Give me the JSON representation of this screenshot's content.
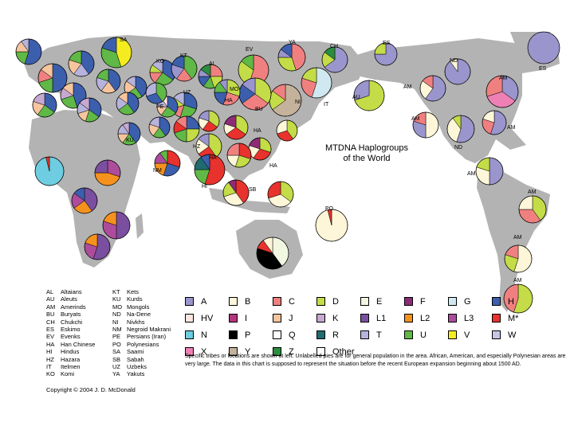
{
  "title_lines": [
    "MTDNA Haplogroups",
    "of the World"
  ],
  "copyright": "Copyright © 2004 J. D. McDonald",
  "note": "Specific tribes or locations are shown at left. Unlabelled pies are for general population in the area. African, American, and especially Polynesian areas are very large. The data in this chart is supposed to represent the situation before the recent European expansion beginning about 1500 AD.",
  "abbreviations": [
    {
      "code": "AL",
      "name": "Altaians"
    },
    {
      "code": "AU",
      "name": "Aleuts"
    },
    {
      "code": "AM",
      "name": "Amerinds"
    },
    {
      "code": "BU",
      "name": "Buryats"
    },
    {
      "code": "CH",
      "name": "Chukchi"
    },
    {
      "code": "ES",
      "name": "Eskimo"
    },
    {
      "code": "EV",
      "name": "Evenks"
    },
    {
      "code": "HA",
      "name": "Han Chinese"
    },
    {
      "code": "HI",
      "name": "Hindus"
    },
    {
      "code": "HZ",
      "name": "Hazara"
    },
    {
      "code": "IT",
      "name": "Itelmen"
    },
    {
      "code": "KO",
      "name": "Komi"
    },
    {
      "code": "KT",
      "name": "Kets"
    },
    {
      "code": "KU",
      "name": "Kurds"
    },
    {
      "code": "MO",
      "name": "Mongols"
    },
    {
      "code": "ND",
      "name": "Na-Dene"
    },
    {
      "code": "NI",
      "name": "Nivkhs"
    },
    {
      "code": "NM",
      "name": "Negroid Makrani"
    },
    {
      "code": "PE",
      "name": "Persians (Iran)"
    },
    {
      "code": "PO",
      "name": "Polynesians"
    },
    {
      "code": "SA",
      "name": "Saami"
    },
    {
      "code": "SB",
      "name": "Sabah"
    },
    {
      "code": "UZ",
      "name": "Uzbeks"
    },
    {
      "code": "YA",
      "name": "Yakuts"
    }
  ],
  "haplogroups": [
    {
      "label": "A",
      "color": "#9a95cc"
    },
    {
      "label": "B",
      "color": "#fdf6d8"
    },
    {
      "label": "C",
      "color": "#f08080"
    },
    {
      "label": "D",
      "color": "#c3dc47"
    },
    {
      "label": "E",
      "color": "#f2f7e2"
    },
    {
      "label": "F",
      "color": "#8e2b77"
    },
    {
      "label": "G",
      "color": "#d0e9f1"
    },
    {
      "label": "H",
      "color": "#3c5fad"
    },
    {
      "label": "HV",
      "color": "#fde6e1"
    },
    {
      "label": "I",
      "color": "#b3357c"
    },
    {
      "label": "J",
      "color": "#f6c59e"
    },
    {
      "label": "K",
      "color": "#c6a8d0"
    },
    {
      "label": "L1",
      "color": "#7a4f9f"
    },
    {
      "label": "L2",
      "color": "#f5921e"
    },
    {
      "label": "L3",
      "color": "#ad4c9c"
    },
    {
      "label": "M*",
      "color": "#e8322d"
    },
    {
      "label": "N",
      "color": "#6ecde0"
    },
    {
      "label": "P",
      "color": "#000000"
    },
    {
      "label": "Q",
      "color": "#ffffff"
    },
    {
      "label": "R",
      "color": "#1f6b6f"
    },
    {
      "label": "T",
      "color": "#b6b3dc"
    },
    {
      "label": "U",
      "color": "#60b846"
    },
    {
      "label": "V",
      "color": "#f5ec1f"
    },
    {
      "label": "W",
      "color": "#c5c6e6"
    },
    {
      "label": "X",
      "color": "#ee80b5"
    },
    {
      "label": "Y",
      "color": "#c5b29c"
    },
    {
      "label": "Z",
      "color": "#2a8d3f"
    },
    {
      "label": "Other",
      "color": "#ffffff"
    }
  ],
  "pies": [
    {
      "label": "SA",
      "slices": [
        [
          "V",
          45
        ],
        [
          "U",
          35
        ],
        [
          "H",
          20
        ]
      ]
    },
    {
      "label": "KO",
      "slices": [
        [
          "H",
          35
        ],
        [
          "U",
          25
        ],
        [
          "C",
          15
        ],
        [
          "D",
          10
        ],
        [
          "T",
          15
        ]
      ]
    },
    {
      "label": "KT",
      "slices": [
        [
          "U",
          40
        ],
        [
          "C",
          20
        ],
        [
          "A",
          20
        ],
        [
          "H",
          20
        ]
      ]
    },
    {
      "label": "AL",
      "slices": [
        [
          "C",
          25
        ],
        [
          "D",
          20
        ],
        [
          "U",
          15
        ],
        [
          "H",
          15
        ],
        [
          "A",
          10
        ],
        [
          "Z",
          15
        ]
      ]
    },
    {
      "label": "EV",
      "slices": [
        [
          "C",
          55
        ],
        [
          "D",
          30
        ],
        [
          "U",
          15
        ]
      ]
    },
    {
      "label": "YA",
      "slices": [
        [
          "C",
          45
        ],
        [
          "D",
          30
        ],
        [
          "A",
          10
        ],
        [
          "H",
          15
        ]
      ]
    },
    {
      "label": "CH",
      "slices": [
        [
          "A",
          65
        ],
        [
          "D",
          20
        ],
        [
          "Z",
          15
        ]
      ]
    },
    {
      "label": "ES",
      "slices": [
        [
          "A",
          75
        ],
        [
          "D",
          25
        ]
      ]
    },
    {
      "label": "ES",
      "slices": [
        [
          "A",
          100
        ]
      ]
    },
    {
      "label": "AU",
      "slices": [
        [
          "D",
          70
        ],
        [
          "A",
          30
        ]
      ]
    },
    {
      "label": "IT",
      "slices": [
        [
          "G",
          55
        ],
        [
          "C",
          25
        ],
        [
          "D",
          20
        ]
      ]
    },
    {
      "label": "NI",
      "slices": [
        [
          "Y",
          65
        ],
        [
          "D",
          20
        ],
        [
          "C",
          15
        ]
      ]
    },
    {
      "label": "BU",
      "slices": [
        [
          "D",
          35
        ],
        [
          "C",
          30
        ],
        [
          "H",
          20
        ],
        [
          "A",
          15
        ]
      ]
    },
    {
      "label": "MO",
      "slices": [
        [
          "D",
          30
        ],
        [
          "C",
          25
        ],
        [
          "H",
          20
        ],
        [
          "U",
          15
        ],
        [
          "A",
          10
        ]
      ]
    },
    {
      "label": "UZ",
      "slices": [
        [
          "H",
          30
        ],
        [
          "U",
          25
        ],
        [
          "C",
          15
        ],
        [
          "D",
          15
        ],
        [
          "T",
          15
        ]
      ]
    },
    {
      "label": "HA",
      "slices": [
        [
          "D",
          35
        ],
        [
          "M*",
          25
        ],
        [
          "B",
          20
        ],
        [
          "A",
          20
        ]
      ]
    },
    {
      "label": "HA",
      "slices": [
        [
          "D",
          35
        ],
        [
          "M*",
          30
        ],
        [
          "B",
          15
        ],
        [
          "F",
          20
        ]
      ]
    },
    {
      "label": "HA",
      "slices": [
        [
          "D",
          40
        ],
        [
          "M*",
          25
        ],
        [
          "B",
          20
        ],
        [
          "A",
          15
        ]
      ]
    },
    {
      "label": "HA",
      "slices": [
        [
          "D",
          30
        ],
        [
          "M*",
          30
        ],
        [
          "B",
          20
        ],
        [
          "F",
          20
        ]
      ]
    },
    {
      "label": "PE",
      "slices": [
        [
          "H",
          35
        ],
        [
          "U",
          25
        ],
        [
          "J",
          15
        ],
        [
          "T",
          15
        ],
        [
          "HV",
          10
        ]
      ]
    },
    {
      "label": "HZ",
      "slices": [
        [
          "H",
          25
        ],
        [
          "D",
          25
        ],
        [
          "U",
          20
        ],
        [
          "M*",
          15
        ],
        [
          "C",
          15
        ]
      ]
    },
    {
      "label": "HI",
      "slices": [
        [
          "M*",
          55
        ],
        [
          "U",
          20
        ],
        [
          "R",
          15
        ],
        [
          "H",
          10
        ]
      ]
    },
    {
      "label": "NM",
      "slices": [
        [
          "M*",
          30
        ],
        [
          "H",
          25
        ],
        [
          "L2",
          20
        ],
        [
          "L3",
          15
        ],
        [
          "U",
          10
        ]
      ]
    },
    {
      "label": "KU",
      "slices": [
        [
          "H",
          40
        ],
        [
          "U",
          20
        ],
        [
          "J",
          15
        ],
        [
          "T",
          15
        ],
        [
          "K",
          10
        ]
      ]
    },
    {
      "label": "SB",
      "slices": [
        [
          "M*",
          40
        ],
        [
          "B",
          30
        ],
        [
          "D",
          20
        ],
        [
          "F",
          10
        ]
      ]
    },
    {
      "label": "PO",
      "slices": [
        [
          "B",
          96
        ],
        [
          "M*",
          4
        ]
      ]
    },
    {
      "label": "ND",
      "slices": [
        [
          "A",
          90
        ],
        [
          "B",
          10
        ]
      ]
    },
    {
      "label": "ND",
      "slices": [
        [
          "A",
          55
        ],
        [
          "B",
          35
        ],
        [
          "D",
          10
        ]
      ]
    },
    {
      "label": "AM",
      "slices": [
        [
          "A",
          60
        ],
        [
          "B",
          25
        ],
        [
          "C",
          15
        ]
      ]
    },
    {
      "label": "AM",
      "slices": [
        [
          "A",
          35
        ],
        [
          "X",
          35
        ],
        [
          "C",
          30
        ]
      ]
    },
    {
      "label": "AM",
      "slices": [
        [
          "B",
          50
        ],
        [
          "A",
          30
        ],
        [
          "C",
          20
        ]
      ]
    },
    {
      "label": "AM",
      "slices": [
        [
          "A",
          55
        ],
        [
          "C",
          25
        ],
        [
          "B",
          20
        ]
      ]
    },
    {
      "label": "AM",
      "slices": [
        [
          "A",
          50
        ],
        [
          "B",
          30
        ],
        [
          "D",
          20
        ]
      ]
    },
    {
      "label": "AM",
      "slices": [
        [
          "D",
          40
        ],
        [
          "C",
          35
        ],
        [
          "B",
          25
        ]
      ]
    },
    {
      "label": "AM",
      "slices": [
        [
          "B",
          55
        ],
        [
          "D",
          25
        ],
        [
          "C",
          20
        ]
      ]
    },
    {
      "label": "AM",
      "slices": [
        [
          "D",
          55
        ],
        [
          "C",
          45
        ]
      ]
    },
    {
      "label": "",
      "slices": [
        [
          "H",
          55
        ],
        [
          "U",
          20
        ],
        [
          "J",
          15
        ],
        [
          "T",
          10
        ]
      ]
    },
    {
      "label": "",
      "slices": [
        [
          "H",
          50
        ],
        [
          "U",
          20
        ],
        [
          "C",
          15
        ],
        [
          "J",
          15
        ]
      ]
    },
    {
      "label": "",
      "slices": [
        [
          "H",
          40
        ],
        [
          "T",
          20
        ],
        [
          "J",
          20
        ],
        [
          "U",
          20
        ]
      ]
    },
    {
      "label": "",
      "slices": [
        [
          "H",
          45
        ],
        [
          "U",
          25
        ],
        [
          "K",
          15
        ],
        [
          "J",
          15
        ]
      ]
    },
    {
      "label": "",
      "slices": [
        [
          "H",
          40
        ],
        [
          "J",
          20
        ],
        [
          "T",
          20
        ],
        [
          "U",
          20
        ]
      ]
    },
    {
      "label": "",
      "slices": [
        [
          "H",
          35
        ],
        [
          "U",
          20
        ],
        [
          "J",
          15
        ],
        [
          "T",
          15
        ],
        [
          "K",
          15
        ]
      ]
    },
    {
      "label": "",
      "slices": [
        [
          "H",
          40
        ],
        [
          "U",
          25
        ],
        [
          "J",
          20
        ],
        [
          "T",
          15
        ]
      ]
    },
    {
      "label": "",
      "slices": [
        [
          "H",
          35
        ],
        [
          "U",
          25
        ],
        [
          "J",
          20
        ],
        [
          "K",
          20
        ]
      ]
    },
    {
      "label": "",
      "slices": [
        [
          "H",
          40
        ],
        [
          "U",
          25
        ],
        [
          "T",
          20
        ],
        [
          "J",
          15
        ]
      ]
    },
    {
      "label": "",
      "slices": [
        [
          "U",
          40
        ],
        [
          "H",
          30
        ],
        [
          "T",
          30
        ]
      ]
    },
    {
      "label": "",
      "slices": [
        [
          "H",
          40
        ],
        [
          "U",
          20
        ],
        [
          "J",
          20
        ],
        [
          "T",
          20
        ]
      ]
    },
    {
      "label": "",
      "slices": [
        [
          "M*",
          30
        ],
        [
          "D",
          25
        ],
        [
          "B",
          20
        ],
        [
          "C",
          25
        ]
      ]
    },
    {
      "label": "",
      "slices": [
        [
          "D",
          40
        ],
        [
          "M*",
          30
        ],
        [
          "B",
          30
        ]
      ]
    },
    {
      "label": "",
      "slices": [
        [
          "D",
          35
        ],
        [
          "B",
          35
        ],
        [
          "M*",
          30
        ]
      ]
    },
    {
      "label": "",
      "slices": [
        [
          "E",
          40
        ],
        [
          "P",
          40
        ],
        [
          "M*",
          10
        ],
        [
          "B",
          10
        ]
      ]
    },
    {
      "label": "",
      "slices": [
        [
          "N",
          96
        ],
        [
          "M*",
          4
        ]
      ]
    },
    {
      "label": "",
      "slices": [
        [
          "L3",
          30
        ],
        [
          "L2",
          45
        ],
        [
          "L1",
          25
        ]
      ]
    },
    {
      "label": "",
      "slices": [
        [
          "L1",
          40
        ],
        [
          "L2",
          25
        ],
        [
          "L3",
          20
        ],
        [
          "H",
          15
        ]
      ]
    },
    {
      "label": "",
      "slices": [
        [
          "L1",
          50
        ],
        [
          "L3",
          30
        ],
        [
          "L2",
          20
        ]
      ]
    },
    {
      "label": "",
      "slices": [
        [
          "L1",
          55
        ],
        [
          "L3",
          25
        ],
        [
          "L2",
          20
        ]
      ]
    },
    {
      "label": "",
      "slices": [
        [
          "L1",
          80
        ],
        [
          "L3",
          20
        ]
      ]
    }
  ]
}
